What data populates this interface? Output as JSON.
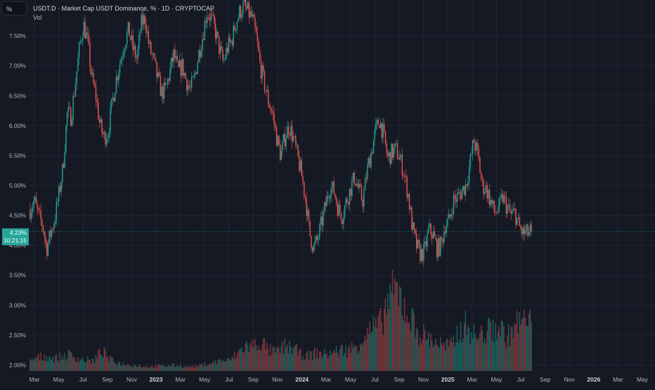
{
  "header": {
    "title": "USDT.D · Market Cap USDT Dominance, % · 1D · CRYPTOCAP",
    "volume_label": "Vol"
  },
  "scale_button": {
    "label": "%"
  },
  "last_price": {
    "value": "4.23%",
    "countdown": "10:21:15"
  },
  "colors": {
    "up": "#26a69a",
    "down": "#ef5350",
    "background": "#151924",
    "grid": "#202532"
  },
  "chart_data": {
    "type": "candlestick",
    "timeframe": "1D",
    "ylim": [
      1.9,
      8.1
    ],
    "y_ticks": [
      {
        "value": 7.5,
        "label": "7.50%"
      },
      {
        "value": 7.0,
        "label": "7.00%"
      },
      {
        "value": 6.5,
        "label": "6.50%"
      },
      {
        "value": 6.0,
        "label": "6.00%"
      },
      {
        "value": 5.5,
        "label": "5.50%"
      },
      {
        "value": 5.0,
        "label": "5.00%"
      },
      {
        "value": 4.5,
        "label": "4.50%"
      },
      {
        "value": 4.0,
        "label": "4.00%"
      },
      {
        "value": 3.5,
        "label": "3.50%"
      },
      {
        "value": 3.0,
        "label": "3.00%"
      },
      {
        "value": 2.5,
        "label": "2.50%"
      },
      {
        "value": 2.0,
        "label": "2.00%"
      }
    ],
    "x_ticks": [
      {
        "label": "Mar",
        "bold": false
      },
      {
        "label": "May",
        "bold": false
      },
      {
        "label": "Jul",
        "bold": false
      },
      {
        "label": "Sep",
        "bold": false
      },
      {
        "label": "Nov",
        "bold": false
      },
      {
        "label": "2023",
        "bold": true
      },
      {
        "label": "Mar",
        "bold": false
      },
      {
        "label": "May",
        "bold": false
      },
      {
        "label": "Jul",
        "bold": false
      },
      {
        "label": "Sep",
        "bold": false
      },
      {
        "label": "Nov",
        "bold": false
      },
      {
        "label": "2024",
        "bold": true
      },
      {
        "label": "Mar",
        "bold": false
      },
      {
        "label": "May",
        "bold": false
      },
      {
        "label": "Jul",
        "bold": false
      },
      {
        "label": "Sep",
        "bold": false
      },
      {
        "label": "Nov",
        "bold": false
      },
      {
        "label": "2025",
        "bold": true
      },
      {
        "label": "Mar",
        "bold": false
      },
      {
        "label": "May",
        "bold": false
      },
      {
        "label": "Jul",
        "bold": false
      },
      {
        "label": "Sep",
        "bold": false
      },
      {
        "label": "Nov",
        "bold": false
      },
      {
        "label": "2026",
        "bold": true
      },
      {
        "label": "Mar",
        "bold": false
      },
      {
        "label": "May",
        "bold": false
      }
    ],
    "price_path": [
      4.6,
      4.75,
      4.5,
      4.35,
      3.95,
      4.2,
      4.45,
      4.85,
      5.3,
      6.2,
      6.15,
      6.7,
      7.3,
      7.7,
      7.4,
      6.8,
      6.5,
      6.0,
      5.8,
      5.9,
      6.4,
      6.8,
      7.1,
      7.4,
      7.6,
      7.3,
      7.1,
      7.7,
      7.8,
      7.3,
      7.1,
      6.8,
      6.55,
      6.6,
      6.9,
      7.2,
      6.9,
      7.0,
      6.75,
      6.6,
      6.8,
      7.2,
      7.5,
      7.9,
      7.8,
      7.6,
      7.3,
      7.05,
      7.3,
      7.4,
      7.7,
      7.9,
      8.0,
      7.9,
      7.8,
      7.5,
      7.0,
      6.7,
      6.4,
      6.2,
      5.8,
      5.5,
      5.8,
      6.0,
      5.8,
      5.5,
      5.2,
      4.8,
      4.2,
      3.95,
      4.1,
      4.4,
      4.7,
      5.0,
      4.9,
      4.6,
      4.5,
      4.75,
      4.95,
      5.15,
      4.9,
      4.75,
      5.25,
      5.55,
      5.9,
      6.1,
      5.85,
      5.45,
      5.55,
      5.6,
      5.45,
      5.2,
      4.85,
      4.3,
      4.0,
      3.85,
      3.9,
      4.25,
      4.2,
      3.95,
      4.0,
      4.35,
      4.4,
      4.75,
      4.8,
      4.9,
      5.0,
      5.35,
      5.75,
      5.5,
      5.0,
      4.95,
      4.75,
      4.55,
      4.6,
      4.8,
      4.65,
      4.5,
      4.55,
      4.3,
      4.2,
      4.2,
      4.23
    ]
  },
  "volume_data": {
    "levels": [
      0.12,
      0.16,
      0.18,
      0.15,
      0.17,
      0.2,
      0.15,
      0.13,
      0.12,
      0.25,
      0.14,
      0.1,
      0.08,
      0.07,
      0.06,
      0.05,
      0.06,
      0.06,
      0.07,
      0.06,
      0.05,
      0.06,
      0.08,
      0.1,
      0.13,
      0.12,
      0.2,
      0.3,
      0.3,
      0.35,
      0.25,
      0.22,
      0.3,
      0.28,
      0.2,
      0.18,
      0.22,
      0.2,
      0.22,
      0.25,
      0.25,
      0.3,
      0.42,
      0.5,
      0.55,
      0.85,
      0.95,
      0.8,
      0.6,
      0.45,
      0.4,
      0.35,
      0.3,
      0.3,
      0.5,
      0.55,
      0.4,
      0.45,
      0.5,
      0.52,
      0.4,
      0.55,
      0.6,
      0.55
    ],
    "ylim": [
      0,
      1
    ]
  },
  "axis": {
    "crosshair_value": 4.23
  }
}
